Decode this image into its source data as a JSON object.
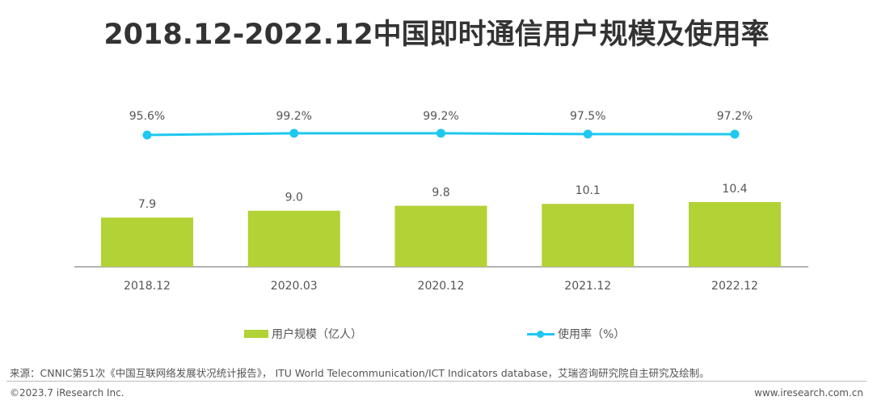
{
  "chart_data": {
    "type": "bar+line",
    "title": "2018.12-2022.12中国即时通信用户规模及使用率",
    "categories": [
      "2018.12",
      "2020.03",
      "2020.12",
      "2021.12",
      "2022.12"
    ],
    "series": [
      {
        "name": "用户规模（亿人）",
        "type": "bar",
        "values": [
          7.9,
          9.0,
          9.8,
          10.1,
          10.4
        ],
        "labels": [
          "7.9",
          "9.0",
          "9.8",
          "10.1",
          "10.4"
        ],
        "color": "#b2d235"
      },
      {
        "name": "使用率（%）",
        "type": "line",
        "values": [
          95.6,
          99.2,
          99.2,
          97.5,
          97.2
        ],
        "labels": [
          "95.6%",
          "99.2%",
          "99.2%",
          "97.5%",
          "97.2%"
        ],
        "color": "#1ec8f0"
      }
    ],
    "legend": "bottom",
    "grid": false
  },
  "footer": {
    "source": "来源：CNNIC第51次《中国互联网络发展状况统计报告》， ITU World Telecommunication/ICT Indicators database，艾瑞咨询研究院自主研究及绘制。",
    "copyright": "©2023.7 iResearch Inc.",
    "website": "www.iresearch.com.cn"
  }
}
